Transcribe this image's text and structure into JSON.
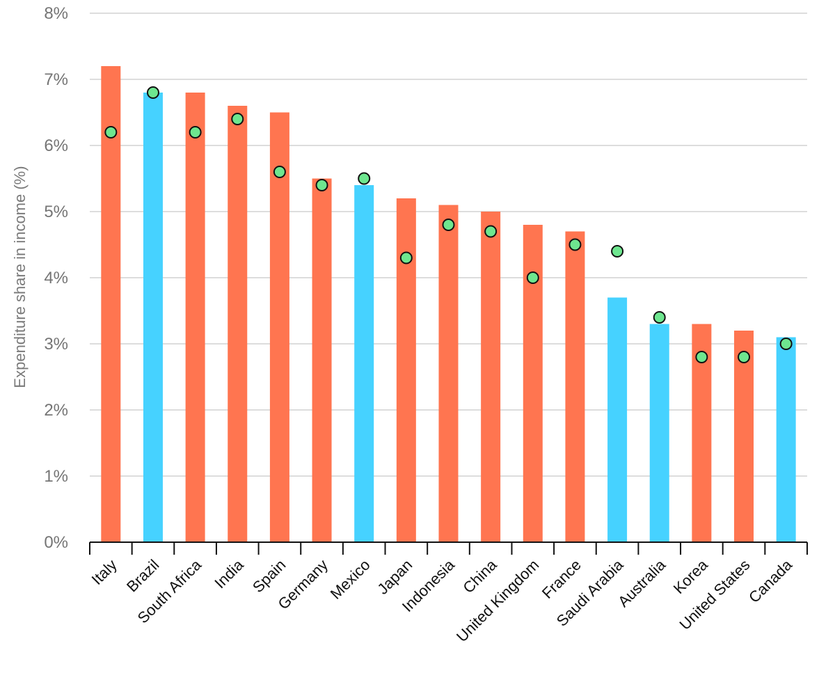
{
  "chart_data": {
    "type": "bar",
    "title": "",
    "xlabel": "",
    "ylabel": "Expenditure share in income (%)",
    "categories": [
      "Italy",
      "Brazil",
      "South Africa",
      "India",
      "Spain",
      "Germany",
      "Mexico",
      "Japan",
      "Indonesia",
      "China",
      "United Kingdom",
      "France",
      "Saudi Arabia",
      "Australia",
      "Korea",
      "United States",
      "Canada"
    ],
    "bar_values": [
      7.2,
      6.8,
      6.8,
      6.6,
      6.5,
      5.5,
      5.4,
      5.2,
      5.1,
      5.0,
      4.8,
      4.7,
      3.7,
      3.3,
      3.3,
      3.2,
      3.1
    ],
    "bar_colors": [
      "#ff7550",
      "#46d2ff",
      "#ff7550",
      "#ff7550",
      "#ff7550",
      "#ff7550",
      "#46d2ff",
      "#ff7550",
      "#ff7550",
      "#ff7550",
      "#ff7550",
      "#ff7550",
      "#46d2ff",
      "#46d2ff",
      "#ff7550",
      "#ff7550",
      "#46d2ff"
    ],
    "marker_values": [
      6.2,
      6.8,
      6.2,
      6.4,
      5.6,
      5.4,
      5.5,
      4.3,
      4.8,
      4.7,
      4.0,
      4.5,
      4.4,
      3.4,
      2.8,
      2.8,
      3.0
    ],
    "marker_color": "#6ee68f",
    "ylim": [
      0,
      8
    ],
    "y_ticks": [
      0,
      1,
      2,
      3,
      4,
      5,
      6,
      7,
      8
    ],
    "y_tick_labels": [
      "0%",
      "1%",
      "2%",
      "3%",
      "4%",
      "5%",
      "6%",
      "7%",
      "8%"
    ],
    "grid": true,
    "legend": null
  }
}
